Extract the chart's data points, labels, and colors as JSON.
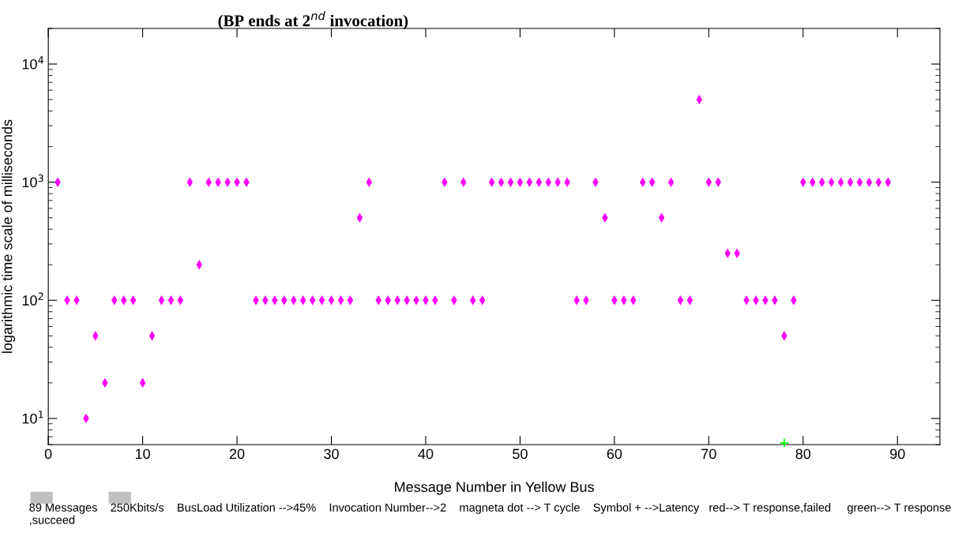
{
  "chart_data": {
    "type": "scatter",
    "title": "(BP ends at 2$^{nd}$ invocation)",
    "xlabel": "Message Number in Yellow Bus",
    "ylabel": "logarithmic time scale of milliseconds",
    "log": "y",
    "xlim": [
      0,
      94.5
    ],
    "xticks": [
      0,
      10,
      20,
      30,
      40,
      50,
      60,
      70,
      80,
      90
    ],
    "ylim": [
      6,
      20000
    ],
    "yticks": [
      {
        "value": 10,
        "label": "10$^{1}$"
      },
      {
        "value": 100,
        "label": "10$^{2}$"
      },
      {
        "value": 1000,
        "label": "10$^{3}$"
      },
      {
        "value": 10000,
        "label": "10$^{4}$"
      }
    ],
    "grid": false,
    "legend": false,
    "annotations": [
      "89 Messages    250Kbits/s    BusLoad Utilization -->45%    Invocation Number-->2    magneta dot --> T cycle    Symbol + -->Latency   red--> T response,failed     green--> T response ,succeed"
    ],
    "series": [
      {
        "color": "#ff00ff",
        "marker": "diamond",
        "x": [
          1,
          2,
          3,
          4,
          5,
          6,
          7,
          8,
          9,
          10,
          11,
          12,
          13,
          14,
          15,
          16,
          17,
          18,
          19,
          20,
          21,
          22,
          23,
          24,
          25,
          26,
          27,
          28,
          29,
          30,
          31,
          32,
          33,
          34,
          35,
          36,
          37,
          38,
          39,
          40,
          41,
          42,
          43,
          44,
          45,
          46,
          47,
          48,
          49,
          50,
          51,
          52,
          53,
          54,
          55,
          56,
          57,
          58,
          59,
          60,
          61,
          62,
          63,
          64,
          65,
          66,
          67,
          68,
          69,
          70,
          71,
          72,
          73,
          74,
          75,
          76,
          77,
          78,
          79,
          80,
          81,
          82,
          83,
          84,
          85,
          86,
          87,
          88,
          89
        ],
        "values": [
          1000,
          100,
          100,
          10,
          50,
          20,
          100,
          100,
          100,
          20,
          50,
          100,
          100,
          100,
          1000,
          200,
          1000,
          1000,
          1000,
          1000,
          1000,
          100,
          100,
          100,
          100,
          100,
          100,
          100,
          100,
          100,
          100,
          100,
          500,
          1000,
          100,
          100,
          100,
          100,
          100,
          100,
          100,
          1000,
          100,
          1000,
          100,
          100,
          1000,
          1000,
          1000,
          1000,
          1000,
          1000,
          1000,
          1000,
          1000,
          100,
          100,
          1000,
          500,
          100,
          100,
          100,
          1000,
          1000,
          500,
          1000,
          100,
          100,
          5000,
          1000,
          1000,
          250,
          250,
          100,
          100,
          100,
          100,
          50,
          100,
          1000,
          1000,
          1000,
          1000,
          1000,
          1000,
          1000,
          1000,
          1000,
          1000
        ]
      },
      {
        "color": "#00ff00",
        "marker": "cross",
        "x": [
          78
        ],
        "values": [
          6.2
        ]
      }
    ]
  }
}
